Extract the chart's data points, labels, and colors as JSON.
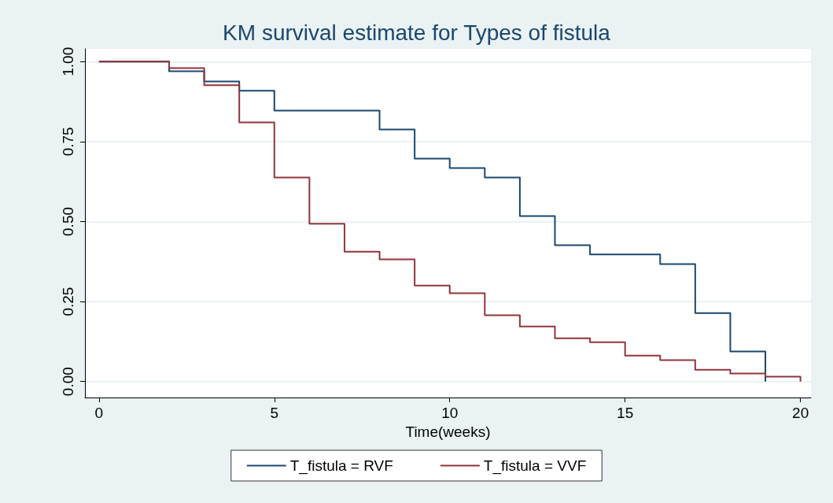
{
  "chart_data": {
    "type": "step",
    "title": "KM survival estimate for Types of fistula",
    "xlabel": "Time(weeks)",
    "xlim": [
      -0.4,
      20.3
    ],
    "xticks": [
      0,
      5,
      10,
      15,
      20
    ],
    "ylim": [
      -0.05,
      1.04
    ],
    "yticks": [
      {
        "value": 0,
        "label": "0.00"
      },
      {
        "value": 0.25,
        "label": "0.25"
      },
      {
        "value": 0.5,
        "label": "0.50"
      },
      {
        "value": 0.75,
        "label": "0.75"
      },
      {
        "value": 1,
        "label": "1.00"
      }
    ],
    "grid": "y",
    "legend": "bottom",
    "marker": "none",
    "line_style": "solid",
    "series": [
      {
        "name": "T_fistula = RVF",
        "color": "#1a476f",
        "x": [
          0,
          2,
          3,
          4,
          5,
          8,
          9,
          10,
          11,
          12,
          13,
          14,
          16,
          17,
          18,
          19
        ],
        "values": [
          1,
          0.97,
          0.938,
          0.909,
          0.847,
          0.788,
          0.697,
          0.667,
          0.638,
          0.517,
          0.426,
          0.397,
          0.367,
          0.214,
          0.094,
          0
        ]
      },
      {
        "name": "T_fistula = VVF",
        "color": "#90353b",
        "x": [
          0,
          2,
          3,
          4,
          5,
          6,
          7,
          8,
          9,
          10,
          11,
          12,
          13,
          14,
          15,
          16,
          17,
          18,
          19,
          20
        ],
        "values": [
          1,
          0.98,
          0.926,
          0.81,
          0.638,
          0.493,
          0.406,
          0.382,
          0.3,
          0.276,
          0.207,
          0.172,
          0.135,
          0.123,
          0.081,
          0.067,
          0.037,
          0.025,
          0.015,
          0
        ]
      }
    ]
  }
}
